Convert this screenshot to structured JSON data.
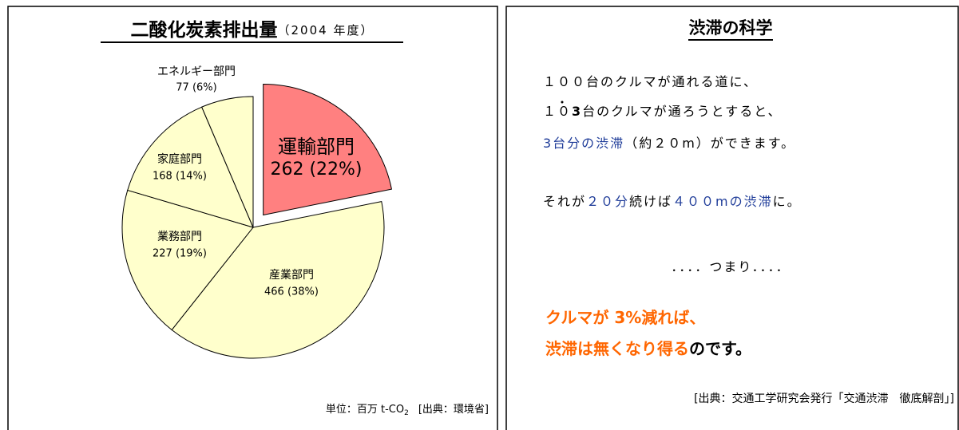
{
  "chart_data": {
    "type": "pie",
    "title": "二酸化炭素排出量",
    "subtitle": "（2004 年度）",
    "categories": [
      "運輸部門",
      "産業部門",
      "業務部門",
      "家庭部門",
      "エネルギー部門"
    ],
    "values": [
      262,
      466,
      227,
      168,
      77
    ],
    "value_labels": [
      "262 (22%)",
      "466 (38%)",
      "227 (19%)",
      "168 (14%)",
      "77 (6%)"
    ],
    "colors": [
      "#ff8080",
      "#ffffcc",
      "#ffffcc",
      "#ffffcc",
      "#ffffcc"
    ],
    "exploded": [
      true,
      false,
      false,
      false,
      false
    ],
    "note": [
      "単位：百万 t-CO",
      "2",
      "[出典：環境省]"
    ]
  },
  "panel": {
    "title": "渋滞の科学",
    "lines": [
      [
        {
          "text": "１００台のクルマが通れる道に、",
          "color": "#000000"
        }
      ],
      [
        {
          "text": "１０",
          "color": "#000000"
        },
        {
          "text": "3",
          "color": "#000000",
          "bold": true
        },
        {
          "text": "台のクルマが通ろうとすると、",
          "color": "#000000"
        }
      ],
      [
        {
          "text": "3台分の渋滞",
          "color": "#1f3c99"
        },
        {
          "text": "（約２０m）ができます。",
          "color": "#000000"
        }
      ],
      [
        {
          "text": "それが",
          "color": "#000000"
        },
        {
          "text": "２０分",
          "color": "#1f3c99"
        },
        {
          "text": "続けば",
          "color": "#000000"
        },
        {
          "text": "４００mの渋滞",
          "color": "#1f3c99"
        },
        {
          "text": "に。",
          "color": "#000000"
        }
      ],
      [
        {
          "text": "．．．．つまり．．．．",
          "color": "#000000"
        }
      ],
      [
        {
          "text": "クルマが 3%減れば、",
          "color": "#ff6600",
          "bold": true
        }
      ],
      [
        {
          "text": "渋滞は無くなり得る",
          "color": "#ff6600",
          "bold": true
        },
        {
          "text": "のです。",
          "color": "#000000",
          "bold": true
        }
      ]
    ],
    "source": "[出典：交通工学研究会発行「交通渋滞　徹底解剖」]"
  }
}
